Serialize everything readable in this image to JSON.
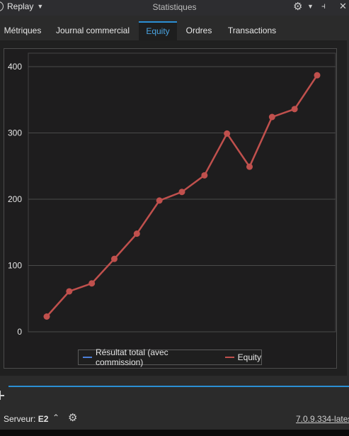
{
  "titlebar": {
    "replay_label": "Replay",
    "window_title": "Statistiques",
    "pin_glyph": "⫞",
    "gear_glyph": "⚙",
    "close_glyph": "✕"
  },
  "tabs": [
    {
      "label": "Métriques",
      "active": false
    },
    {
      "label": "Journal commercial",
      "active": false
    },
    {
      "label": "Equity",
      "active": true
    },
    {
      "label": "Ordres",
      "active": false
    },
    {
      "label": "Transactions",
      "active": false
    }
  ],
  "chart_data": {
    "type": "line",
    "title": "",
    "xlabel": "",
    "ylabel": "",
    "ylim": [
      0,
      400
    ],
    "yticks": [
      "0",
      "100",
      "200",
      "300",
      "400"
    ],
    "grid": true,
    "legend_position": "bottom",
    "series": [
      {
        "name": "Résultat total (avec commission)",
        "color": "#4c7fd9",
        "points": []
      },
      {
        "name": "Equity",
        "color": "#c0504d",
        "points": [
          {
            "x": 1,
            "y": 23
          },
          {
            "x": 2,
            "y": 61
          },
          {
            "x": 3,
            "y": 73
          },
          {
            "x": 4,
            "y": 110
          },
          {
            "x": 5,
            "y": 148
          },
          {
            "x": 6,
            "y": 198
          },
          {
            "x": 7,
            "y": 211
          },
          {
            "x": 8,
            "y": 236
          },
          {
            "x": 9,
            "y": 299
          },
          {
            "x": 10,
            "y": 249
          },
          {
            "x": 11,
            "y": 324
          },
          {
            "x": 12,
            "y": 336
          },
          {
            "x": 13,
            "y": 387
          }
        ]
      }
    ]
  },
  "status": {
    "server_label": "Serveur:",
    "server_value": "E2",
    "version": "7.0.9.334-lates"
  },
  "colors": {
    "accent": "#2b8fd4",
    "equity": "#c0504d",
    "total": "#4c7fd9"
  }
}
